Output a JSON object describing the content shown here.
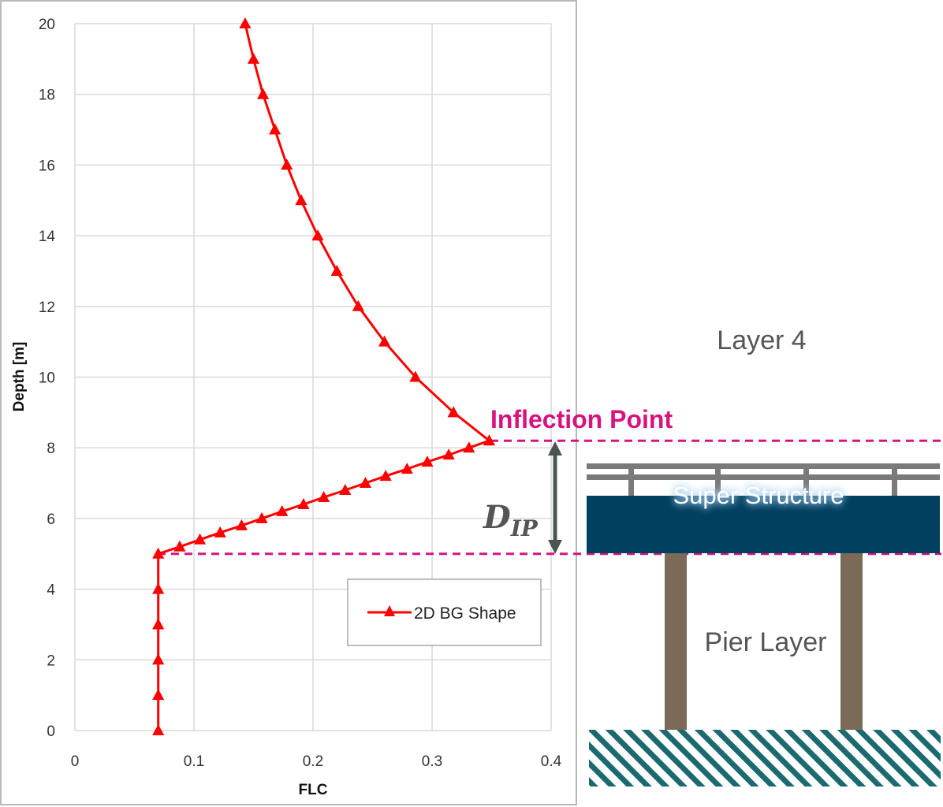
{
  "chart_data": {
    "type": "line",
    "title": "",
    "xlabel": "FLC",
    "ylabel": "Depth [m]",
    "xlim": [
      0,
      0.4
    ],
    "ylim": [
      0,
      20
    ],
    "x_ticks": [
      "0",
      "0.1",
      "0.2",
      "0.3",
      "0.4"
    ],
    "y_ticks": [
      "0",
      "2",
      "4",
      "6",
      "8",
      "10",
      "12",
      "14",
      "16",
      "18",
      "20"
    ],
    "grid": "vertical and horizontal",
    "legend_position": "bottom-right",
    "series": [
      {
        "name": "2D BG Shape",
        "color": "#ff0000",
        "marker": "triangle",
        "points": [
          {
            "x": 0.07,
            "y": 0
          },
          {
            "x": 0.07,
            "y": 1
          },
          {
            "x": 0.07,
            "y": 2
          },
          {
            "x": 0.07,
            "y": 3
          },
          {
            "x": 0.07,
            "y": 4
          },
          {
            "x": 0.07,
            "y": 5
          },
          {
            "x": 0.088,
            "y": 5.2
          },
          {
            "x": 0.105,
            "y": 5.4
          },
          {
            "x": 0.122,
            "y": 5.6
          },
          {
            "x": 0.14,
            "y": 5.8
          },
          {
            "x": 0.157,
            "y": 6.0
          },
          {
            "x": 0.174,
            "y": 6.2
          },
          {
            "x": 0.192,
            "y": 6.4
          },
          {
            "x": 0.209,
            "y": 6.6
          },
          {
            "x": 0.227,
            "y": 6.8
          },
          {
            "x": 0.244,
            "y": 7.0
          },
          {
            "x": 0.261,
            "y": 7.2
          },
          {
            "x": 0.279,
            "y": 7.4
          },
          {
            "x": 0.296,
            "y": 7.6
          },
          {
            "x": 0.314,
            "y": 7.8
          },
          {
            "x": 0.331,
            "y": 8.0
          },
          {
            "x": 0.348,
            "y": 8.2
          },
          {
            "x": 0.318,
            "y": 9
          },
          {
            "x": 0.286,
            "y": 10
          },
          {
            "x": 0.26,
            "y": 11
          },
          {
            "x": 0.238,
            "y": 12
          },
          {
            "x": 0.22,
            "y": 13
          },
          {
            "x": 0.204,
            "y": 14
          },
          {
            "x": 0.19,
            "y": 15
          },
          {
            "x": 0.178,
            "y": 16
          },
          {
            "x": 0.168,
            "y": 17
          },
          {
            "x": 0.158,
            "y": 18
          },
          {
            "x": 0.15,
            "y": 19
          },
          {
            "x": 0.143,
            "y": 20
          }
        ]
      }
    ],
    "annotations": {
      "inflection_label": "Inflection Point",
      "inflection_depth": 8.2,
      "pier_top_depth": 5,
      "dip_main": "D",
      "dip_sub": "IP"
    }
  },
  "diagram": {
    "layer4_label": "Layer 4",
    "super_structure_label": "Super Structure",
    "pier_layer_label": "Pier Layer",
    "colors": {
      "annotation": "#d6137f",
      "deck": "#024060",
      "pier": "#7b6a57",
      "railing": "#7a7a7a",
      "hatch": "#1a6a70",
      "arrow": "#4a5550"
    }
  }
}
